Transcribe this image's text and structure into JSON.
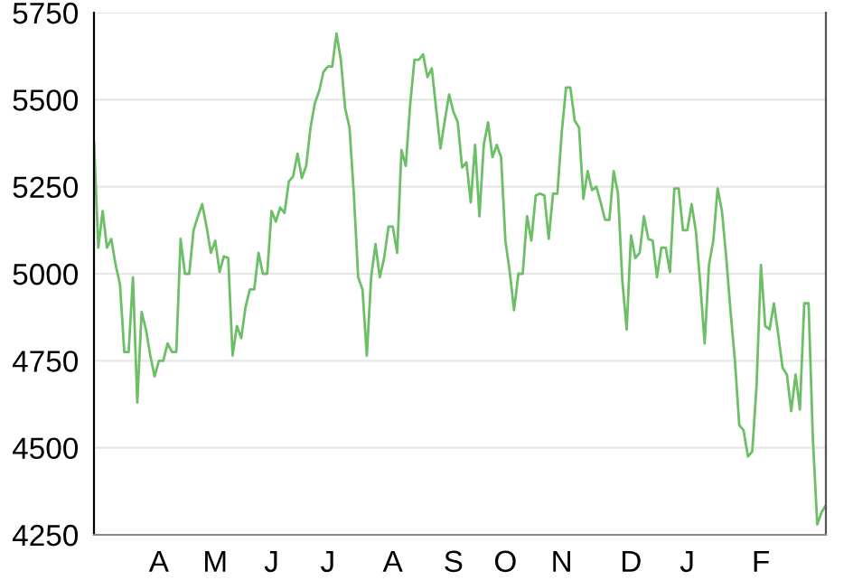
{
  "chart_data": {
    "type": "line",
    "categories": [
      null,
      null,
      null,
      null,
      null,
      null,
      null,
      null,
      null,
      null,
      null,
      null,
      null,
      null,
      null,
      "A",
      null,
      null,
      null,
      null,
      null,
      null,
      null,
      null,
      null,
      null,
      null,
      null,
      "M",
      null,
      null,
      null,
      null,
      null,
      null,
      null,
      null,
      null,
      null,
      null,
      null,
      "J",
      null,
      null,
      null,
      null,
      null,
      null,
      null,
      null,
      null,
      null,
      null,
      null,
      "J",
      null,
      null,
      null,
      null,
      null,
      null,
      null,
      null,
      null,
      null,
      null,
      null,
      null,
      null,
      "A",
      null,
      null,
      null,
      null,
      null,
      null,
      null,
      null,
      null,
      null,
      null,
      null,
      null,
      "S",
      null,
      null,
      null,
      null,
      null,
      null,
      null,
      null,
      null,
      null,
      null,
      "O",
      null,
      null,
      null,
      null,
      null,
      null,
      null,
      null,
      null,
      null,
      null,
      null,
      "N",
      null,
      null,
      null,
      null,
      null,
      null,
      null,
      null,
      null,
      null,
      null,
      null,
      null,
      null,
      null,
      "D",
      null,
      null,
      null,
      null,
      null,
      null,
      null,
      null,
      null,
      null,
      null,
      null,
      "J",
      null,
      null,
      null,
      null,
      null,
      null,
      null,
      null,
      null,
      null,
      null,
      null,
      null,
      null,
      null,
      null,
      "F",
      null,
      null,
      null,
      null,
      null,
      null,
      null,
      null,
      null,
      null,
      null,
      null,
      null,
      null,
      null
    ],
    "series": [
      {
        "color": "#6dbf67",
        "values": [
          5380,
          5075,
          5180,
          5075,
          5100,
          5025,
          4970,
          4775,
          4775,
          4990,
          4630,
          4890,
          4840,
          4765,
          4705,
          4750,
          4750,
          4800,
          4775,
          4775,
          5100,
          5000,
          5000,
          5125,
          5165,
          5200,
          5135,
          5060,
          5095,
          5005,
          5050,
          5045,
          4765,
          4850,
          4815,
          4905,
          4955,
          4955,
          5060,
          5000,
          5000,
          5180,
          5150,
          5190,
          5175,
          5265,
          5280,
          5345,
          5275,
          5310,
          5420,
          5490,
          5525,
          5580,
          5595,
          5595,
          5690,
          5615,
          5475,
          5420,
          5230,
          4990,
          4955,
          4765,
          4990,
          5085,
          4990,
          5045,
          5135,
          5135,
          5060,
          5355,
          5310,
          5485,
          5615,
          5615,
          5630,
          5565,
          5590,
          5475,
          5360,
          5440,
          5515,
          5465,
          5435,
          5305,
          5320,
          5205,
          5370,
          5165,
          5370,
          5435,
          5335,
          5370,
          5335,
          5095,
          5005,
          4895,
          5000,
          5000,
          5165,
          5095,
          5225,
          5230,
          5225,
          5100,
          5230,
          5230,
          5405,
          5535,
          5535,
          5440,
          5420,
          5215,
          5295,
          5240,
          5250,
          5205,
          5155,
          5155,
          5295,
          5230,
          4980,
          4840,
          5110,
          5045,
          5060,
          5165,
          5100,
          5095,
          4990,
          5075,
          5075,
          5005,
          5245,
          5245,
          5125,
          5125,
          5200,
          5120,
          4970,
          4800,
          5025,
          5095,
          5245,
          5180,
          5045,
          4890,
          4750,
          4565,
          4550,
          4475,
          4490,
          4680,
          5025,
          4850,
          4840,
          4915,
          4825,
          4730,
          4710,
          4605,
          4710,
          4610,
          4915,
          4915,
          4525,
          4280,
          4315,
          4335
        ]
      }
    ],
    "ylim": [
      4250,
      5750
    ],
    "yticks": [
      4250,
      4500,
      4750,
      5000,
      5250,
      5500,
      5750
    ],
    "grid": "y",
    "marker": "none",
    "line_style": "solid"
  }
}
